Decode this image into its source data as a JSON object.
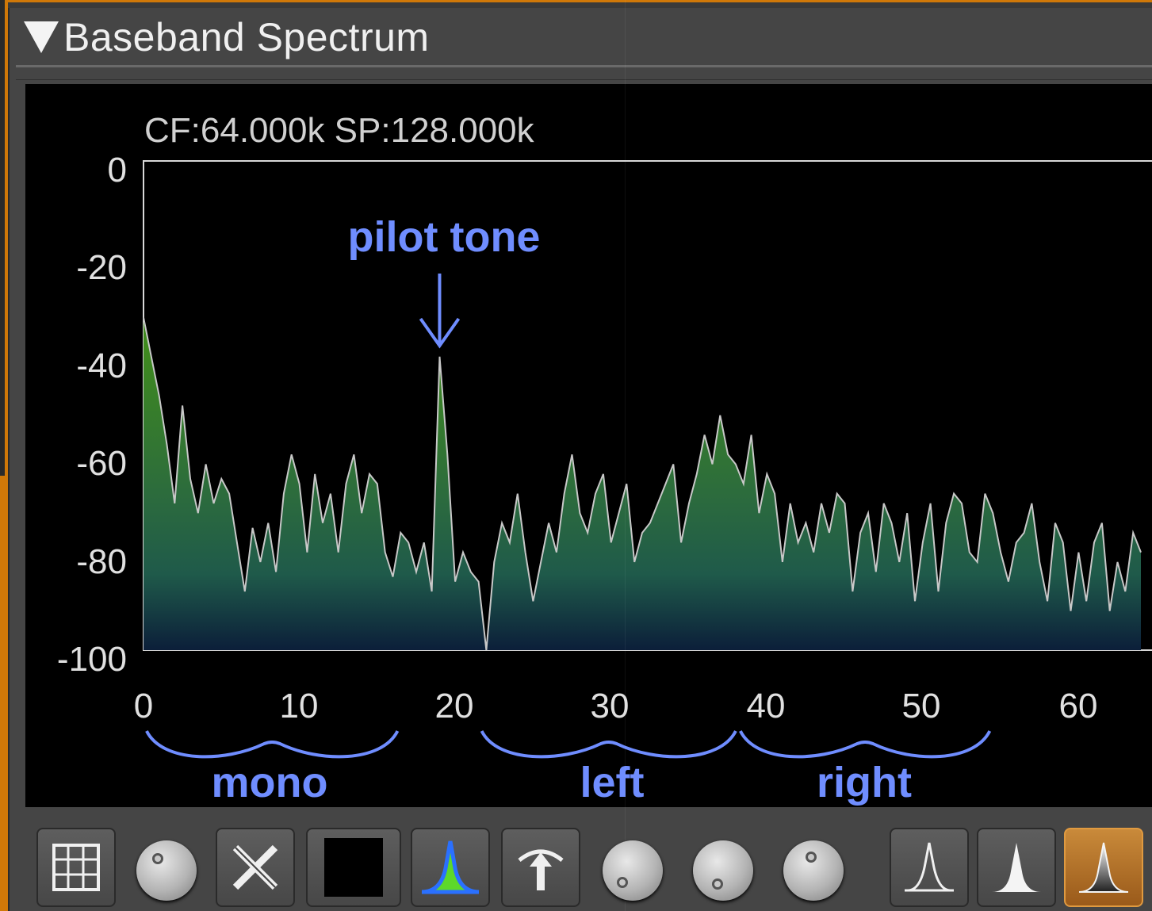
{
  "panel": {
    "title": "Baseband Spectrum"
  },
  "plot": {
    "info_label": "CF:64.000k SP:128.000k",
    "y_ticks": [
      "0",
      "-20",
      "-40",
      "-60",
      "-80",
      "-100"
    ],
    "x_ticks": [
      "0",
      "10",
      "20",
      "30",
      "40",
      "50",
      "60"
    ]
  },
  "annotations": {
    "pilot": "pilot tone",
    "mono": "mono",
    "left": "left",
    "right": "right"
  },
  "chart_data": {
    "type": "area",
    "xlim": [
      0,
      64
    ],
    "ylim": [
      -100,
      0
    ],
    "series": [
      {
        "values": [
          [
            0,
            -32
          ],
          [
            0.5,
            -40
          ],
          [
            1,
            -48
          ],
          [
            1.5,
            -58
          ],
          [
            2,
            -70
          ],
          [
            2.5,
            -50
          ],
          [
            3,
            -65
          ],
          [
            3.5,
            -72
          ],
          [
            4,
            -62
          ],
          [
            4.5,
            -70
          ],
          [
            5,
            -65
          ],
          [
            5.5,
            -68
          ],
          [
            6,
            -78
          ],
          [
            6.5,
            -88
          ],
          [
            7,
            -75
          ],
          [
            7.5,
            -82
          ],
          [
            8,
            -74
          ],
          [
            8.5,
            -84
          ],
          [
            9,
            -68
          ],
          [
            9.5,
            -60
          ],
          [
            10,
            -66
          ],
          [
            10.5,
            -80
          ],
          [
            11,
            -64
          ],
          [
            11.5,
            -74
          ],
          [
            12,
            -68
          ],
          [
            12.5,
            -80
          ],
          [
            13,
            -66
          ],
          [
            13.5,
            -60
          ],
          [
            14,
            -72
          ],
          [
            14.5,
            -64
          ],
          [
            15,
            -66
          ],
          [
            15.5,
            -80
          ],
          [
            16,
            -85
          ],
          [
            16.5,
            -76
          ],
          [
            17,
            -78
          ],
          [
            17.5,
            -84
          ],
          [
            18,
            -78
          ],
          [
            18.5,
            -88
          ],
          [
            19,
            -40
          ],
          [
            19.5,
            -60
          ],
          [
            20,
            -86
          ],
          [
            20.5,
            -80
          ],
          [
            21,
            -84
          ],
          [
            21.5,
            -86
          ],
          [
            22,
            -100
          ],
          [
            22.5,
            -82
          ],
          [
            23,
            -74
          ],
          [
            23.5,
            -78
          ],
          [
            24,
            -68
          ],
          [
            24.5,
            -80
          ],
          [
            25,
            -90
          ],
          [
            25.5,
            -82
          ],
          [
            26,
            -74
          ],
          [
            26.5,
            -80
          ],
          [
            27,
            -68
          ],
          [
            27.5,
            -60
          ],
          [
            28,
            -72
          ],
          [
            28.5,
            -76
          ],
          [
            29,
            -68
          ],
          [
            29.5,
            -64
          ],
          [
            30,
            -78
          ],
          [
            30.5,
            -72
          ],
          [
            31,
            -66
          ],
          [
            31.5,
            -82
          ],
          [
            32,
            -76
          ],
          [
            32.5,
            -74
          ],
          [
            33,
            -70
          ],
          [
            33.5,
            -66
          ],
          [
            34,
            -62
          ],
          [
            34.5,
            -78
          ],
          [
            35,
            -70
          ],
          [
            35.5,
            -64
          ],
          [
            36,
            -56
          ],
          [
            36.5,
            -62
          ],
          [
            37,
            -52
          ],
          [
            37.5,
            -60
          ],
          [
            38,
            -62
          ],
          [
            38.5,
            -66
          ],
          [
            39,
            -56
          ],
          [
            39.5,
            -72
          ],
          [
            40,
            -64
          ],
          [
            40.5,
            -68
          ],
          [
            41,
            -82
          ],
          [
            41.5,
            -70
          ],
          [
            42,
            -78
          ],
          [
            42.5,
            -74
          ],
          [
            43,
            -80
          ],
          [
            43.5,
            -70
          ],
          [
            44,
            -76
          ],
          [
            44.5,
            -68
          ],
          [
            45,
            -70
          ],
          [
            45.5,
            -88
          ],
          [
            46,
            -76
          ],
          [
            46.5,
            -72
          ],
          [
            47,
            -84
          ],
          [
            47.5,
            -70
          ],
          [
            48,
            -74
          ],
          [
            48.5,
            -82
          ],
          [
            49,
            -72
          ],
          [
            49.5,
            -90
          ],
          [
            50,
            -78
          ],
          [
            50.5,
            -70
          ],
          [
            51,
            -88
          ],
          [
            51.5,
            -74
          ],
          [
            52,
            -68
          ],
          [
            52.5,
            -70
          ],
          [
            53,
            -80
          ],
          [
            53.5,
            -82
          ],
          [
            54,
            -68
          ],
          [
            54.5,
            -72
          ],
          [
            55,
            -80
          ],
          [
            55.5,
            -86
          ],
          [
            56,
            -78
          ],
          [
            56.5,
            -76
          ],
          [
            57,
            -70
          ],
          [
            57.5,
            -82
          ],
          [
            58,
            -90
          ],
          [
            58.5,
            -74
          ],
          [
            59,
            -78
          ],
          [
            59.5,
            -92
          ],
          [
            60,
            -80
          ],
          [
            60.5,
            -90
          ],
          [
            61,
            -78
          ],
          [
            61.5,
            -74
          ],
          [
            62,
            -92
          ],
          [
            62.5,
            -82
          ],
          [
            63,
            -88
          ],
          [
            63.5,
            -76
          ],
          [
            64,
            -80
          ]
        ]
      }
    ]
  }
}
